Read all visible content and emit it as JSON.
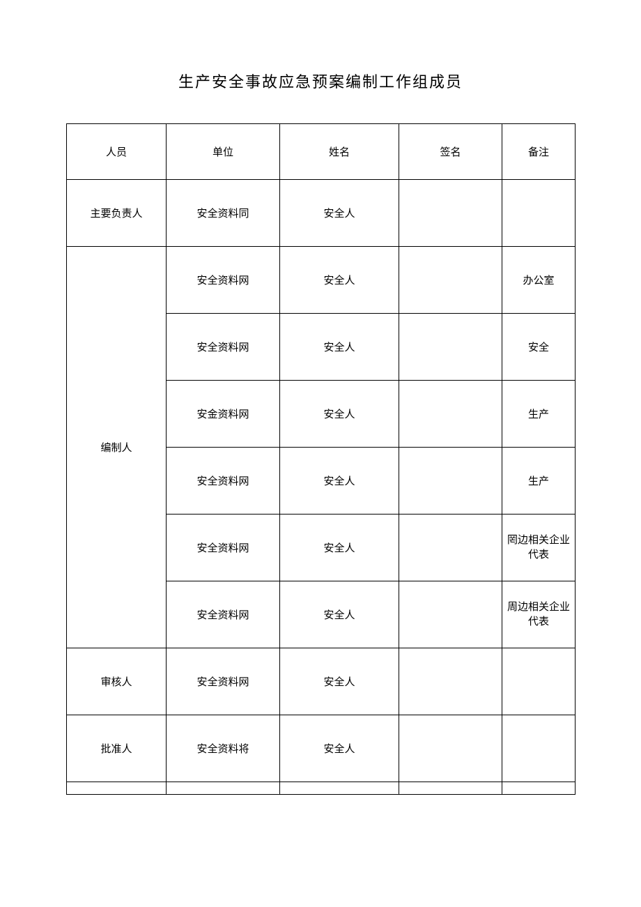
{
  "title": "生产安全事故应急预案编制工作组成员",
  "columns": {
    "role": "人员",
    "unit": "单位",
    "name": "姓名",
    "sign": "签名",
    "remark": "备注"
  },
  "rows": [
    {
      "role": "主要负责人",
      "unit": "安全资料同",
      "name": "安全人",
      "sign": "",
      "remark": ""
    },
    {
      "role": "编制人",
      "unit": "安全资料网",
      "name": "安全人",
      "sign": "",
      "remark": "办公室"
    },
    {
      "role": "",
      "unit": "安全资料网",
      "name": "安全人",
      "sign": "",
      "remark": "安全"
    },
    {
      "role": "",
      "unit": "安金资料网",
      "name": "安全人",
      "sign": "",
      "remark": "生产"
    },
    {
      "role": "",
      "unit": "安全资料网",
      "name": "安全人",
      "sign": "",
      "remark": "生产"
    },
    {
      "role": "",
      "unit": "安全资料网",
      "name": "安全人",
      "sign": "",
      "remark": "罔边相关企业代表"
    },
    {
      "role": "",
      "unit": "安全资料网",
      "name": "安全人",
      "sign": "",
      "remark": "周边相关企业代表"
    },
    {
      "role": "审核人",
      "unit": "安全资料网",
      "name": "安全人",
      "sign": "",
      "remark": ""
    },
    {
      "role": "批准人",
      "unit": "安全资料将",
      "name": "安全人",
      "sign": "",
      "remark": ""
    }
  ],
  "style": {
    "background_color": "#ffffff",
    "border_color": "#000000",
    "text_color": "#000000",
    "title_fontsize": 22,
    "cell_fontsize": 15,
    "font_family": "SimSun"
  }
}
